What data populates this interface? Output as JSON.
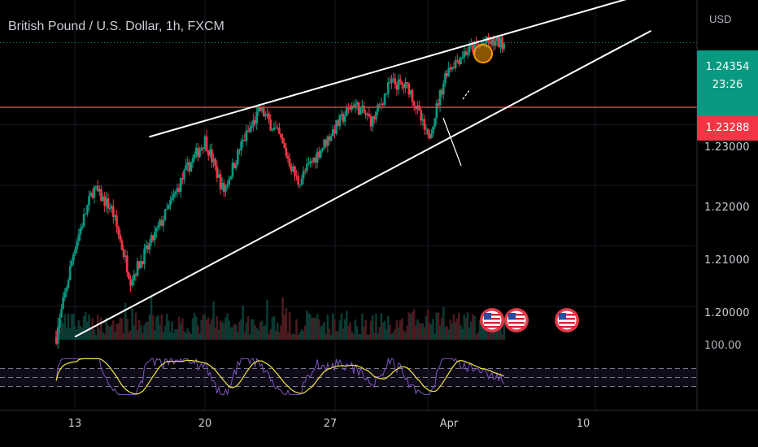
{
  "header": {
    "title": "British Pound / U.S. Dollar, 1h, FXCM",
    "currency": "USD"
  },
  "price_scale": {
    "current_price": "1.24354",
    "countdown": "23:26",
    "level_price": "1.23288",
    "ticks": [
      "1.23000",
      "1.22000",
      "1.21000",
      "1.20000"
    ],
    "rsi_tick": "100.00"
  },
  "time_axis": {
    "ticks": [
      "13",
      "20",
      "27",
      "Apr",
      "10"
    ]
  },
  "colors": {
    "up": "#089981",
    "down": "#f23645",
    "level_line": "#f23645",
    "trendline": "#ffffff",
    "rsi": "#7e57c2",
    "rsi_ma": "#f2e644",
    "highlight_circle": "#ff9800"
  },
  "chart_data": {
    "type": "candlestick",
    "symbol": "British Pound / U.S. Dollar",
    "interval": "1h",
    "ylim": [
      1.194,
      1.2495
    ],
    "current_price": 1.24354,
    "horizontal_level": 1.23288,
    "price_path": [
      {
        "date": "Mar 12",
        "price": 1.195
      },
      {
        "date": "Mar 13",
        "price": 1.21
      },
      {
        "date": "Mar 14",
        "price": 1.2195
      },
      {
        "date": "Mar 15",
        "price": 1.216
      },
      {
        "date": "Mar 16",
        "price": 1.2045
      },
      {
        "date": "Mar 17",
        "price": 1.21
      },
      {
        "date": "Mar 18",
        "price": 1.216
      },
      {
        "date": "Mar 19",
        "price": 1.2225
      },
      {
        "date": "Mar 20",
        "price": 1.2275
      },
      {
        "date": "Mar 21",
        "price": 1.219
      },
      {
        "date": "Mar 22",
        "price": 1.227
      },
      {
        "date": "Mar 23",
        "price": 1.2325
      },
      {
        "date": "Mar 24",
        "price": 1.228
      },
      {
        "date": "Mar 25",
        "price": 1.2205
      },
      {
        "date": "Mar 26",
        "price": 1.225
      },
      {
        "date": "Mar 27",
        "price": 1.2295
      },
      {
        "date": "Mar 28",
        "price": 1.2335
      },
      {
        "date": "Mar 29",
        "price": 1.2305
      },
      {
        "date": "Mar 30",
        "price": 1.237
      },
      {
        "date": "Mar 31",
        "price": 1.236
      },
      {
        "date": "Apr 1",
        "price": 1.2275
      },
      {
        "date": "Apr 2",
        "price": 1.239
      },
      {
        "date": "Apr 3",
        "price": 1.242
      },
      {
        "date": "Apr 4",
        "price": 1.2435
      }
    ],
    "channel": {
      "upper": [
        {
          "date": "Mar 17",
          "price": 1.228
        },
        {
          "date": "Apr 12",
          "price": 1.251
        }
      ],
      "lower": [
        {
          "date": "Mar 13",
          "price": 1.195
        },
        {
          "date": "Apr 13",
          "price": 1.2455
        }
      ]
    },
    "events": [
      "US",
      "US",
      "US"
    ],
    "rsi": {
      "ylim": [
        0,
        100
      ],
      "upper_band": 70,
      "lower_band": 30,
      "last": 65
    },
    "x_ticks": [
      "13",
      "20",
      "27",
      "Apr",
      "10"
    ],
    "y_ticks": [
      "1.23000",
      "1.22000",
      "1.21000",
      "1.20000"
    ],
    "grid": true,
    "legend": "top-left"
  }
}
